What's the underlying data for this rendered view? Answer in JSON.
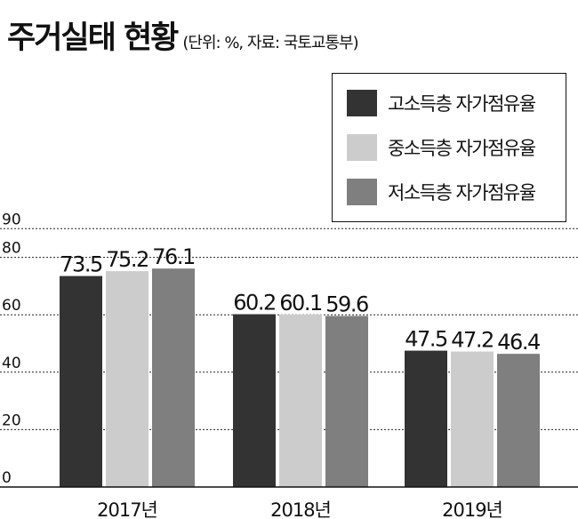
{
  "title": "주거실태 현황",
  "subtitle": "(단위: %, 자료: 국토교통부)",
  "colors": {
    "high": "#333333",
    "mid": "#cccccc",
    "low": "#7f7f7f"
  },
  "chart_data": {
    "type": "bar",
    "categories": [
      "2017년",
      "2018년",
      "2019년"
    ],
    "series": [
      {
        "name": "고소득층 자가점유율",
        "values": [
          73.5,
          60.2,
          47.5
        ]
      },
      {
        "name": "중소득층 자가점유율",
        "values": [
          75.2,
          60.1,
          47.2
        ]
      },
      {
        "name": "저소득층 자가점유율",
        "values": [
          76.1,
          59.6,
          46.4
        ]
      }
    ],
    "value_labels": [
      [
        "73.5",
        "60.2",
        "47.5"
      ],
      [
        "75.2",
        "60.1",
        "47.2"
      ],
      [
        "76.1",
        "59.6",
        "46.4"
      ]
    ],
    "yticks": [
      "0",
      "20",
      "40",
      "60",
      "80",
      "90"
    ],
    "ylim": [
      0,
      95
    ],
    "grid": true,
    "legend_position": "top-right"
  }
}
